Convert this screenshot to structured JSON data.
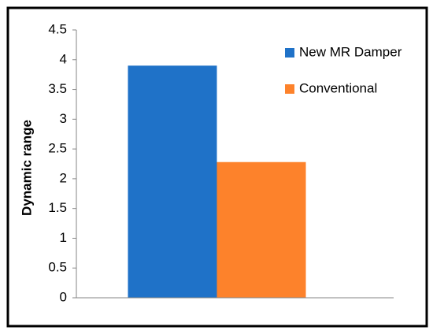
{
  "chart_data": {
    "type": "bar",
    "y_label": "Dynamic range",
    "categories": [
      null
    ],
    "series": [
      {
        "name": "New MR Damper",
        "color": "#1f72c8",
        "values": [
          3.9
        ]
      },
      {
        "name": "Conventional",
        "color": "#fd822b",
        "values": [
          2.28
        ]
      }
    ],
    "ylim": [
      0,
      4.5
    ],
    "yticks": [
      0,
      0.5,
      1,
      1.5,
      2,
      2.5,
      3,
      3.5,
      4,
      4.5
    ],
    "grid": false,
    "legend": "top-right"
  }
}
